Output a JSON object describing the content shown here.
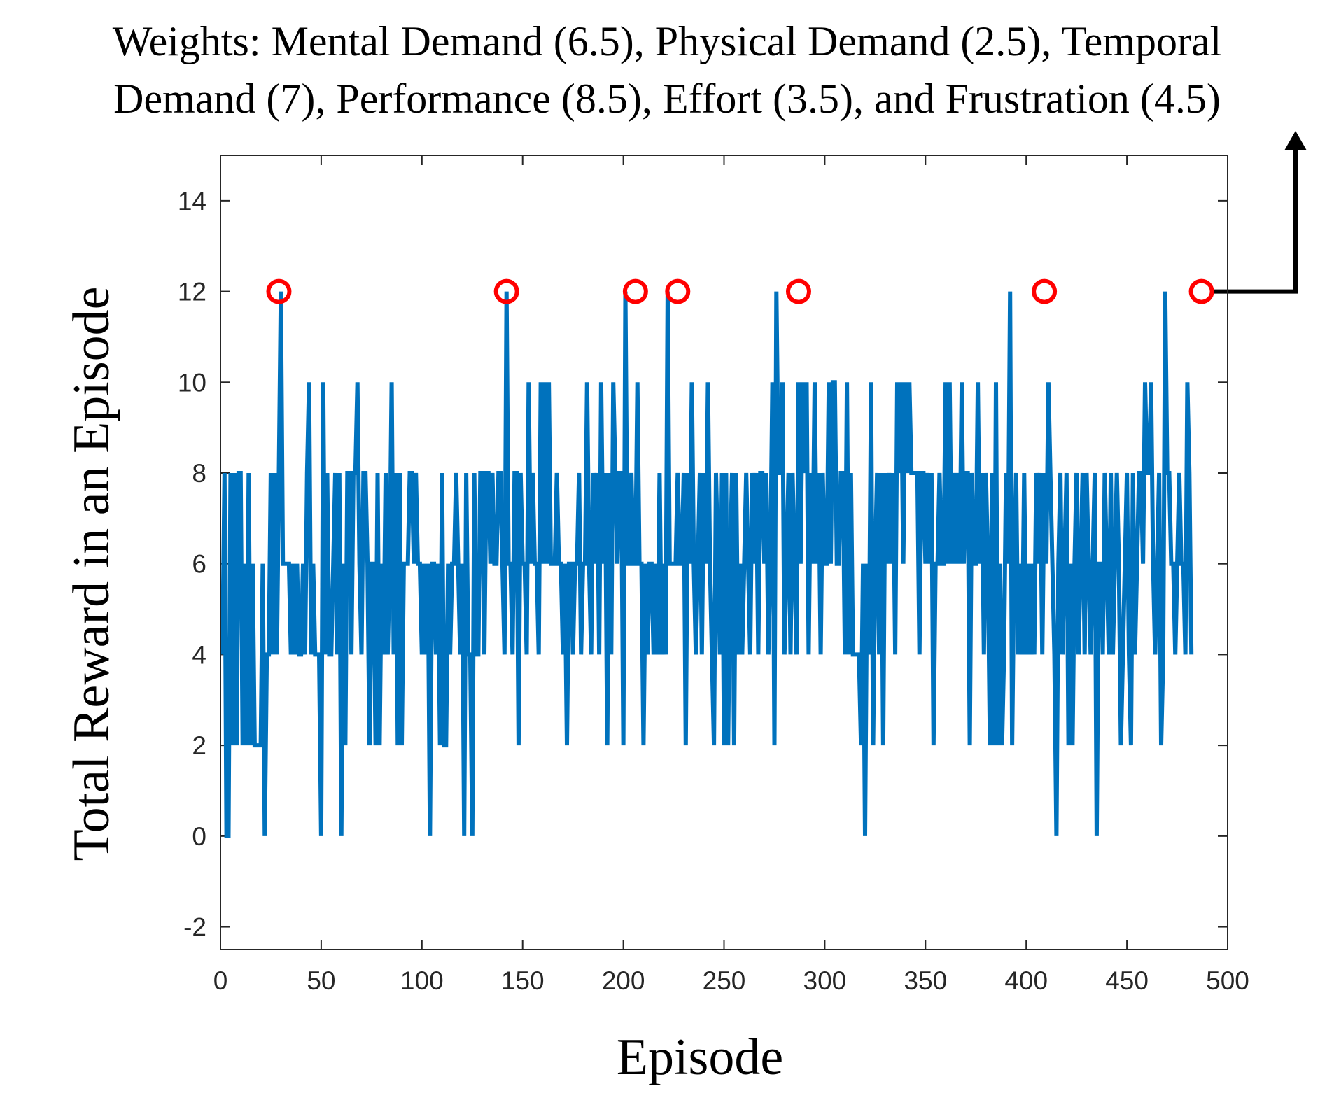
{
  "annotation": {
    "line1": "Weights: Mental Demand (6.5), Physical Demand (2.5), Temporal",
    "line2": "Demand (7), Performance (8.5), Effort (3.5), and Frustration (4.5)"
  },
  "chart_data": {
    "type": "line",
    "title": "",
    "xlabel": "Episode",
    "ylabel": "Total Reward in an Episode",
    "xlim": [
      0,
      500
    ],
    "ylim": [
      -2.5,
      15
    ],
    "xticks": [
      0,
      50,
      100,
      150,
      200,
      250,
      300,
      350,
      400,
      450,
      500
    ],
    "yticks": [
      -2,
      0,
      2,
      4,
      6,
      8,
      10,
      12,
      14
    ],
    "grid": false,
    "series_color": "#0072BD",
    "highlight_color": "#FF0000",
    "annotation_arrow_color": "#000000",
    "series": [
      {
        "values": [
          4,
          8,
          0,
          0,
          8,
          2,
          8,
          2,
          8,
          8,
          2,
          6,
          2,
          8,
          2,
          6,
          2,
          2,
          2,
          2,
          6,
          0,
          4,
          4,
          8,
          4,
          8,
          4,
          8,
          12,
          6,
          6,
          6,
          6,
          4,
          6,
          4,
          6,
          4,
          4,
          6,
          4,
          8,
          10,
          4,
          6,
          4,
          4,
          4,
          0,
          10,
          4,
          8,
          4,
          4,
          6,
          8,
          4,
          8,
          0,
          6,
          2,
          8,
          8,
          4,
          8,
          8,
          10,
          6,
          4,
          8,
          8,
          6,
          2,
          6,
          6,
          2,
          8,
          2,
          6,
          4,
          8,
          4,
          6,
          10,
          4,
          8,
          2,
          8,
          2,
          6,
          6,
          6,
          8,
          8,
          6,
          8,
          6,
          6,
          4,
          6,
          4,
          6,
          0,
          6,
          6,
          4,
          6,
          2,
          8,
          2,
          2,
          6,
          4,
          6,
          6,
          8,
          6,
          4,
          6,
          0,
          8,
          4,
          4,
          0,
          8,
          4,
          4,
          8,
          8,
          4,
          8,
          8,
          6,
          8,
          6,
          6,
          8,
          8,
          6,
          4,
          12,
          6,
          6,
          4,
          8,
          8,
          2,
          8,
          6,
          6,
          4,
          10,
          6,
          8,
          6,
          6,
          4,
          10,
          6,
          10,
          6,
          10,
          6,
          6,
          6,
          8,
          6,
          6,
          4,
          6,
          2,
          6,
          6,
          4,
          6,
          6,
          8,
          4,
          6,
          6,
          10,
          6,
          4,
          8,
          6,
          8,
          4,
          10,
          6,
          8,
          2,
          8,
          4,
          10,
          8,
          6,
          8,
          8,
          2,
          12,
          6,
          6,
          8,
          6,
          6,
          10,
          6,
          6,
          2,
          6,
          4,
          6,
          6,
          4,
          6,
          4,
          8,
          4,
          6,
          4,
          12,
          6,
          6,
          6,
          6,
          8,
          6,
          6,
          8,
          2,
          8,
          6,
          10,
          6,
          4,
          6,
          8,
          4,
          8,
          6,
          10,
          6,
          4,
          2,
          8,
          6,
          4,
          8,
          2,
          8,
          2,
          6,
          8,
          2,
          8,
          4,
          6,
          4,
          6,
          8,
          6,
          4,
          8,
          6,
          8,
          4,
          8,
          8,
          6,
          8,
          4,
          6,
          10,
          2,
          12,
          8,
          8,
          10,
          4,
          6,
          8,
          4,
          8,
          6,
          4,
          10,
          6,
          10,
          8,
          10,
          4,
          8,
          6,
          10,
          6,
          8,
          4,
          8,
          6,
          6,
          10,
          6,
          10,
          10,
          6,
          6,
          8,
          8,
          4,
          10,
          4,
          8,
          4,
          4,
          4,
          4,
          2,
          6,
          0,
          6,
          4,
          10,
          2,
          6,
          8,
          4,
          8,
          2,
          8,
          6,
          8,
          6,
          8,
          4,
          10,
          8,
          10,
          6,
          10,
          8,
          10,
          8,
          8,
          8,
          8,
          4,
          8,
          8,
          6,
          8,
          6,
          8,
          2,
          6,
          6,
          8,
          6,
          6,
          10,
          6,
          10,
          6,
          8,
          6,
          8,
          6,
          10,
          6,
          8,
          8,
          2,
          8,
          6,
          6,
          10,
          6,
          8,
          4,
          8,
          6,
          2,
          8,
          2,
          10,
          2,
          6,
          2,
          4,
          8,
          6,
          12,
          2,
          6,
          8,
          4,
          6,
          4,
          8,
          4,
          6,
          4,
          6,
          4,
          8,
          6,
          8,
          4,
          8,
          6,
          10,
          8,
          6,
          4,
          0,
          6,
          8,
          4,
          6,
          8,
          2,
          6,
          2,
          6,
          8,
          4,
          6,
          8,
          4,
          8,
          6,
          4,
          6,
          8,
          0,
          6,
          6,
          4,
          8,
          6,
          4,
          8,
          4,
          6,
          8,
          6,
          2,
          4,
          6,
          8,
          4,
          2,
          8,
          4,
          6,
          8,
          8,
          6,
          10,
          8,
          8,
          10,
          6,
          4,
          6,
          8,
          2,
          4,
          12,
          8,
          8,
          6,
          6,
          4,
          6,
          8,
          6,
          6,
          4,
          10,
          8,
          4
        ]
      }
    ],
    "highlighted_points": [
      {
        "x": 29,
        "y": 12
      },
      {
        "x": 142,
        "y": 12
      },
      {
        "x": 206,
        "y": 12
      },
      {
        "x": 227,
        "y": 12
      },
      {
        "x": 287,
        "y": 12
      },
      {
        "x": 409,
        "y": 12
      },
      {
        "x": 487,
        "y": 12
      }
    ]
  }
}
